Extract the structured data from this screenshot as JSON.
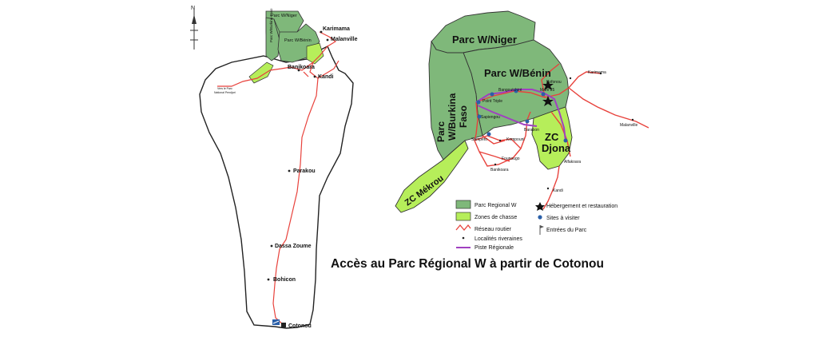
{
  "title": "Accès au Parc Régional W à partir de Cotonou",
  "north": "N",
  "colors": {
    "park": "#7fb87a",
    "hunting_zone": "#b6ee5a",
    "road": "#e8423c",
    "regional_track": "#a040c0",
    "border": "#222222"
  },
  "left_map": {
    "parks": {
      "w_niger": "Parc W/Niger",
      "w_burkina": "Parc W/Burkina Faso",
      "w_benin": "Parc W/Bénin"
    },
    "towns": {
      "karimama": "Karimama",
      "malanville": "Malanville",
      "banikoara": "Banikoara",
      "kandi": "Kandi",
      "parakou": "Parakou",
      "dassa": "Dassa Zoume",
      "bohicon": "Bohicon",
      "cotonou": "Cotonou",
      "pendjari_1": "Vers le Parc",
      "pendjari_2": "National Pendjari"
    }
  },
  "right_map": {
    "parks": {
      "w_niger": "Parc W/Niger",
      "w_benin": "Parc W/Bénin",
      "w_burkina_1": "Parc",
      "w_burkina_2": "W/Burkina",
      "w_burkina_3": "Faso"
    },
    "zones": {
      "djona_1": "ZC",
      "djona_2": "Djona",
      "mekrou": "ZC Mékrou"
    },
    "places": {
      "karimama": "Karimama",
      "kofonou": "Kofonou",
      "bangoutchire": "Bangoutchiré",
      "mare25": "Mare 25",
      "point_triple": "Point Triple",
      "sapiengou": "Sapiengou",
      "barabon": "Barabon",
      "kompouni": "Kompouni",
      "sampeto": "Sampéto",
      "founougo": "Founougo",
      "alfakoara": "Alfakoara",
      "banikoara": "Banikoara",
      "malanville": "Malanville",
      "kandi": "Kandi"
    }
  },
  "legend": {
    "park": "Parc Regional W",
    "hunting": "Zones de chasse",
    "roads": "Réseau routier",
    "localities": "Localités riveraines",
    "track": "Piste Régionale",
    "lodging": "Hébergement et restauration",
    "sites": "Sites à visiter",
    "entries": "Entrées du Parc"
  }
}
